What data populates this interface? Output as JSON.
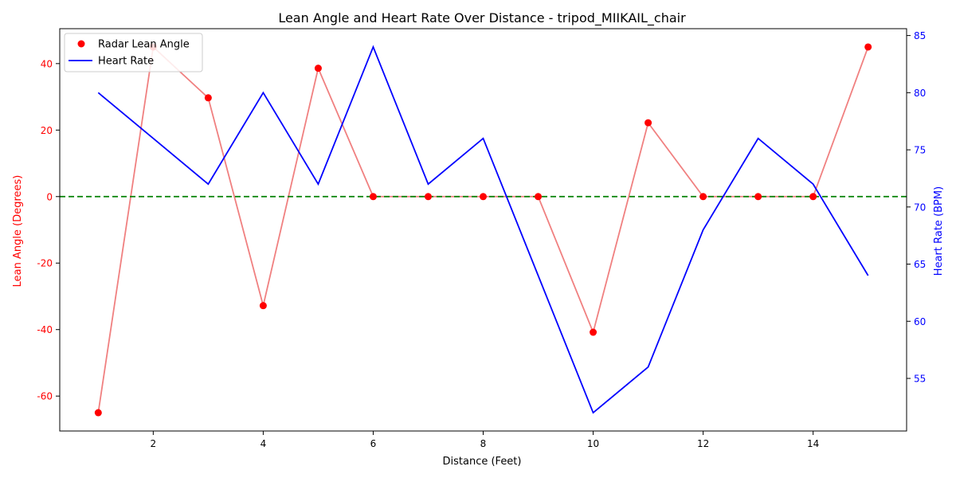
{
  "chart_data": {
    "type": "line",
    "title": "Lean Angle and Heart Rate Over Distance - tripod_MIIKAIL_chair",
    "xlabel": "Distance (Feet)",
    "ylabel_left": "Lean Angle (Degrees)",
    "ylabel_right": "Heart Rate (BPM)",
    "x_ticks": [
      2,
      4,
      6,
      8,
      10,
      12,
      14
    ],
    "y_left_ticks": [
      -60,
      -40,
      -20,
      0,
      20,
      40
    ],
    "y_right_ticks": [
      55,
      60,
      65,
      70,
      75,
      80,
      85
    ],
    "xlim": [
      0.3,
      15.7
    ],
    "ylim_left": [
      -70.5,
      50.5
    ],
    "ylim_right": [
      50.4,
      85.6
    ],
    "reference_line": {
      "y": 0,
      "axis": "left",
      "color": "#008000",
      "style": "dashed"
    },
    "legend_position": "upper-left",
    "x": [
      1,
      2,
      3,
      4,
      5,
      6,
      7,
      8,
      9,
      10,
      11,
      12,
      13,
      14,
      15
    ],
    "series": [
      {
        "name": "Radar Lean Angle",
        "axis": "left",
        "marker": "circle",
        "color": "#ff0000",
        "line_color": "#f08080",
        "values": [
          -65,
          45,
          29.7,
          -32.8,
          38.6,
          0,
          0,
          0,
          0,
          -40.8,
          22.2,
          0,
          0,
          0,
          45
        ]
      },
      {
        "name": "Heart Rate",
        "axis": "right",
        "color": "#0000ff",
        "values": [
          80,
          null,
          72,
          80,
          72,
          84,
          72,
          76,
          null,
          52,
          56,
          68,
          76,
          72,
          64
        ]
      }
    ],
    "heart_rate_line_points": {
      "x": [
        1,
        2,
        3,
        4,
        5,
        6,
        7,
        8,
        9,
        10,
        11,
        12,
        13,
        14,
        15
      ],
      "values": [
        80,
        76,
        72,
        80,
        72,
        84,
        72,
        76,
        64,
        52,
        56,
        68,
        76,
        72,
        64
      ]
    }
  }
}
